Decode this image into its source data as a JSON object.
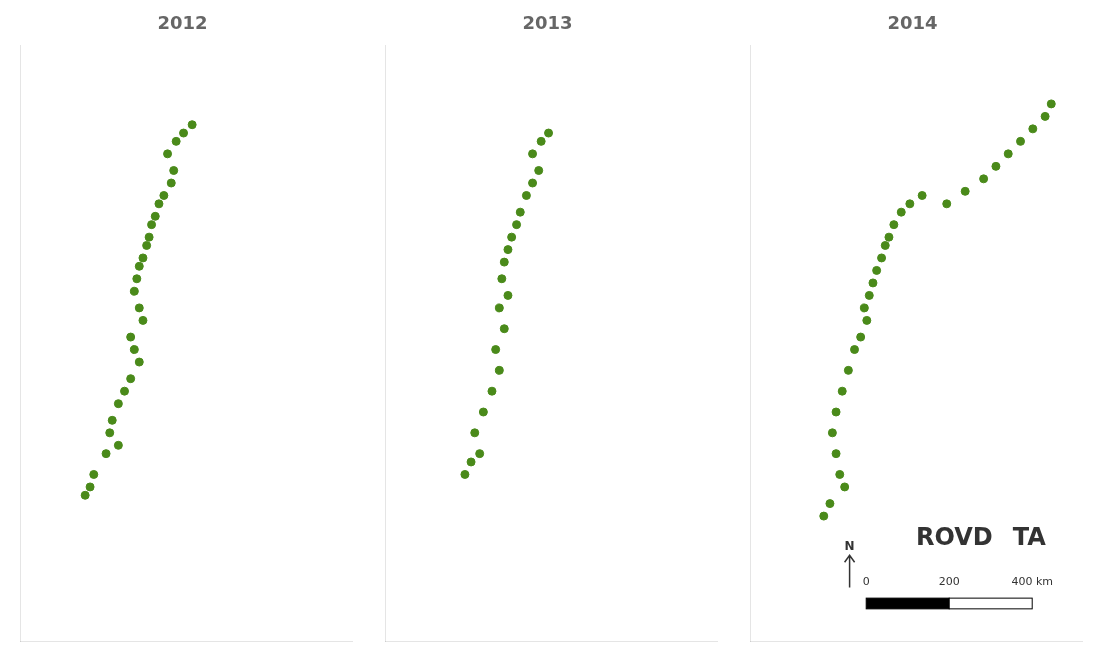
{
  "chart_data": [
    {
      "type": "scatter",
      "title": "2012",
      "color": "#4a8a1a",
      "marker": "circle",
      "xlim": [
        4.5,
        31.5
      ],
      "ylim": [
        57.5,
        71.8
      ],
      "grid": false,
      "tick_labels": false,
      "x": [
        17.8,
        18.5,
        17.2,
        16.5,
        17.0,
        16.8,
        16.2,
        15.8,
        15.5,
        15.2,
        15.0,
        14.8,
        14.5,
        14.2,
        14.0,
        13.8,
        14.2,
        14.5,
        13.5,
        13.8,
        14.2,
        13.5,
        13.0,
        12.5,
        12.0,
        11.8,
        12.5,
        11.5,
        10.5,
        10.2,
        9.8
      ],
      "values": [
        69.7,
        69.9,
        69.5,
        69.2,
        68.8,
        68.5,
        68.2,
        68.0,
        67.7,
        67.5,
        67.2,
        67.0,
        66.7,
        66.5,
        66.2,
        65.9,
        65.5,
        65.2,
        64.8,
        64.5,
        64.2,
        63.8,
        63.5,
        63.2,
        62.8,
        62.5,
        62.2,
        62.0,
        61.5,
        61.2,
        61.0
      ]
    },
    {
      "type": "scatter",
      "title": "2013",
      "color": "#4a8a1a",
      "marker": "circle",
      "xlim": [
        4.5,
        31.5
      ],
      "ylim": [
        57.5,
        71.8
      ],
      "grid": false,
      "tick_labels": false,
      "x": [
        17.8,
        17.2,
        16.5,
        17.0,
        16.5,
        16.0,
        15.5,
        15.2,
        14.8,
        14.5,
        14.2,
        14.0,
        14.5,
        13.8,
        14.2,
        13.5,
        13.8,
        13.2,
        12.5,
        11.8,
        12.2,
        11.5,
        11.0
      ],
      "values": [
        69.7,
        69.5,
        69.2,
        68.8,
        68.5,
        68.2,
        67.8,
        67.5,
        67.2,
        66.9,
        66.6,
        66.2,
        65.8,
        65.5,
        65.0,
        64.5,
        64.0,
        63.5,
        63.0,
        62.5,
        62.0,
        61.8,
        61.5
      ]
    },
    {
      "type": "scatter",
      "title": "2014",
      "color": "#4a8a1a",
      "marker": "circle",
      "xlim": [
        4.5,
        31.5
      ],
      "ylim": [
        57.5,
        71.8
      ],
      "grid": false,
      "tick_labels": false,
      "x": [
        29.0,
        28.5,
        27.5,
        26.5,
        25.5,
        24.5,
        23.5,
        22.0,
        20.5,
        18.5,
        17.5,
        16.8,
        16.2,
        15.8,
        15.5,
        15.2,
        14.8,
        14.5,
        14.2,
        13.8,
        14.0,
        13.5,
        13.0,
        12.5,
        12.0,
        11.5,
        11.2,
        11.5,
        11.8,
        12.2,
        11.0,
        10.5
      ],
      "values": [
        70.4,
        70.1,
        69.8,
        69.5,
        69.2,
        68.9,
        68.6,
        68.3,
        68.0,
        68.2,
        68.0,
        67.8,
        67.5,
        67.2,
        67.0,
        66.7,
        66.4,
        66.1,
        65.8,
        65.5,
        65.2,
        64.8,
        64.5,
        64.0,
        63.5,
        63.0,
        62.5,
        62.0,
        61.5,
        61.2,
        60.8,
        60.5
      ],
      "annotations": [
        "0",
        "200",
        "400 km",
        "N",
        "ROVD",
        "TA"
      ]
    }
  ]
}
